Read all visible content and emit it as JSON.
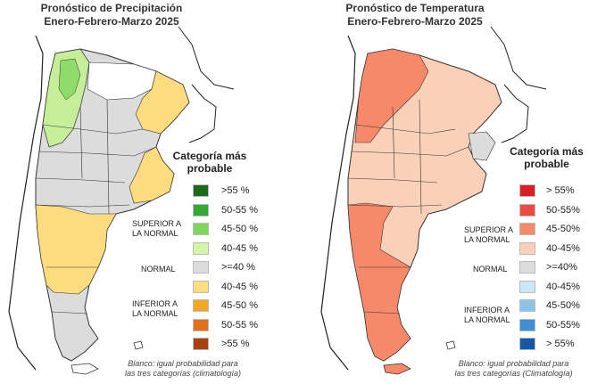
{
  "precipitation": {
    "title_line1": "Pronóstico de Precipitación",
    "title_line2": "Enero-Febrero-Marzo 2025",
    "legend_title_line1": "Categoría más",
    "legend_title_line2": "probable",
    "superior_label_line1": "SUPERIOR A",
    "superior_label_line2": "LA NORMAL",
    "normal_label": "NORMAL",
    "inferior_label_line1": "INFERIOR A",
    "inferior_label_line2": "LA NORMAL",
    "footnote_line1": "Blanco: igual probabilidad para",
    "footnote_line2": "las tres categorías (climatología)",
    "legend": [
      {
        "label": ">55 %",
        "color": "#1a6b1a"
      },
      {
        "label": "50-55 %",
        "color": "#33a833"
      },
      {
        "label": "45-50 %",
        "color": "#7fd65c"
      },
      {
        "label": "40-45 %",
        "color": "#d2f5a8"
      },
      {
        "label": ">=40 %",
        "color": "#dcdcdc"
      },
      {
        "label": "40-45 %",
        "color": "#fddc80"
      },
      {
        "label": "45-50 %",
        "color": "#f5a623"
      },
      {
        "label": "50-55 %",
        "color": "#e0701a"
      },
      {
        "label": ">55 %",
        "color": "#a8400f"
      }
    ]
  },
  "temperature": {
    "title_line1": "Pronóstico de Temperatura",
    "title_line2": "Enero-Febrero-Marzo 2025",
    "legend_title_line1": "Categoría más",
    "legend_title_line2": "probable",
    "superior_label_line1": "SUPERIOR A",
    "superior_label_line2": "LA NORMAL",
    "normal_label": "NORMAL",
    "inferior_label_line1": "INFERIOR A",
    "inferior_label_line2": "LA NORMAL",
    "footnote_line1": "Blanco: igual probabilidad para",
    "footnote_line2": "las tres categorías (Climatología)",
    "legend": [
      {
        "label": "> 55%",
        "color": "#d81f26"
      },
      {
        "label": "50-55%",
        "color": "#ec4a45"
      },
      {
        "label": "45-50%",
        "color": "#f6896a"
      },
      {
        "label": "40-45%",
        "color": "#fbd0b8"
      },
      {
        "label": ">=40%",
        "color": "#dcdcdc"
      },
      {
        "label": "40-45%",
        "color": "#cde6f7"
      },
      {
        "label": "45-50%",
        "color": "#8cc3ec"
      },
      {
        "label": "50-55%",
        "color": "#3f8fd6"
      },
      {
        "label": "> 55%",
        "color": "#1757a8"
      }
    ]
  }
}
